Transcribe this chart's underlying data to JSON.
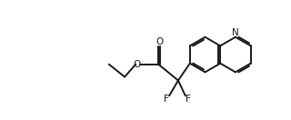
{
  "bg_color": "#ffffff",
  "line_color": "#1a1a1a",
  "line_width": 1.4,
  "font_size": 7.5,
  "figsize": [
    3.2,
    1.32
  ],
  "dpi": 100,
  "xlim": [
    0,
    3.2
  ],
  "ylim": [
    0,
    1.32
  ]
}
